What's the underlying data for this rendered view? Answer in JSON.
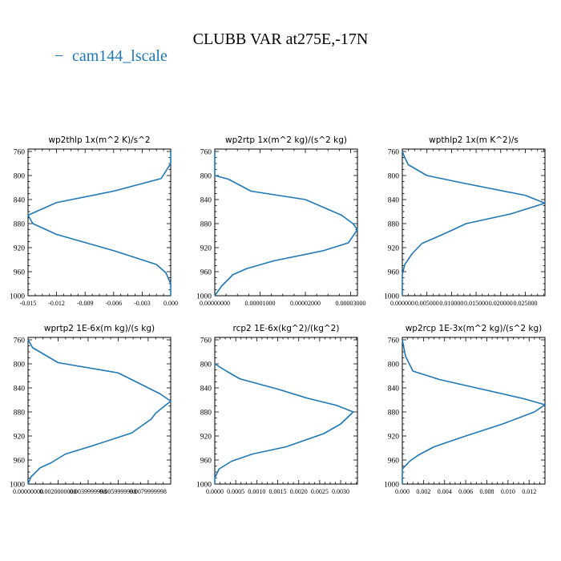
{
  "figure": {
    "title": "CLUBB VAR at275E,-17N",
    "legend_label": "cam144_lscale",
    "legend_marker": "−",
    "series_color": "#1f77b4"
  },
  "chart_data": [
    {
      "type": "line",
      "title": "wp2thlp  1x(m^2 K)/s^2",
      "series": [
        {
          "name": "cam144_lscale",
          "points": [
            [
              0.0,
              760
            ],
            [
              0.0,
              780
            ],
            [
              -0.001,
              805
            ],
            [
              -0.006,
              826
            ],
            [
              -0.012,
              845
            ],
            [
              -0.015,
              866
            ],
            [
              -0.0145,
              880
            ],
            [
              -0.012,
              898
            ],
            [
              -0.006,
              925
            ],
            [
              -0.0015,
              948
            ],
            [
              -0.0005,
              962
            ],
            [
              0.0,
              980
            ],
            [
              0.0,
              1000
            ]
          ]
        }
      ],
      "ylim": [
        1000,
        756
      ],
      "yticks": [
        "760",
        "800",
        "840",
        "880",
        "920",
        "960",
        "1000"
      ],
      "xlim": [
        -0.015,
        0.0
      ],
      "xticks": [
        "-0.015",
        "-0.012",
        "-0.009",
        "-0.006",
        "-0.003",
        "0.000"
      ]
    },
    {
      "type": "line",
      "title": "wp2rtp  1x(m^2 kg)/(s^2 kg)",
      "series": [
        {
          "name": "cam144_lscale",
          "points": [
            [
              0.0,
              760
            ],
            [
              0.0,
              800
            ],
            [
              3e-06,
              806
            ],
            [
              8e-06,
              826
            ],
            [
              2e-05,
              840
            ],
            [
              2.8e-05,
              866
            ],
            [
              3.05e-05,
              880
            ],
            [
              3.15e-05,
              890
            ],
            [
              2.95e-05,
              912
            ],
            [
              2.4e-05,
              925
            ],
            [
              1.3e-05,
              942
            ],
            [
              7e-06,
              955
            ],
            [
              4e-06,
              965
            ],
            [
              1.5e-06,
              984
            ],
            [
              0.0,
              1000
            ]
          ]
        }
      ],
      "ylim": [
        1000,
        756
      ],
      "yticks": [
        "760",
        "800",
        "840",
        "880",
        "920",
        "960",
        "1000"
      ],
      "xlim": [
        0.0,
        3.15e-05
      ],
      "xticks": [
        "0.00000000",
        "0.00001000",
        "0.00002000",
        "0.00003000"
      ]
    },
    {
      "type": "line",
      "title": "wpthlp2  1x(m K^2)/s",
      "series": [
        {
          "name": "cam144_lscale",
          "points": [
            [
              0.0,
              760
            ],
            [
              0.0005,
              770
            ],
            [
              0.0012,
              782
            ],
            [
              0.005,
              800
            ],
            [
              0.012,
              812
            ],
            [
              0.025,
              833
            ],
            [
              0.029,
              846
            ],
            [
              0.022,
              864
            ],
            [
              0.013,
              880
            ],
            [
              0.0085,
              897
            ],
            [
              0.004,
              913
            ],
            [
              0.002,
              930
            ],
            [
              0.0005,
              948
            ],
            [
              0.0,
              965
            ],
            [
              0.0,
              1000
            ]
          ]
        }
      ],
      "ylim": [
        1000,
        756
      ],
      "yticks": [
        "760",
        "800",
        "840",
        "880",
        "920",
        "960",
        "1000"
      ],
      "xlim": [
        0.0,
        0.029
      ],
      "xticks": [
        "0.000000",
        "0.005000",
        "0.010000",
        "0.015000",
        "0.020000",
        "0.025000"
      ]
    },
    {
      "type": "line",
      "title": "wprtp2  1E-6x(m kg)/(s kg)",
      "series": [
        {
          "name": "cam144_lscale",
          "points": [
            [
              0.0,
              760
            ],
            [
              0.0003,
              773
            ],
            [
              0.002,
              798
            ],
            [
              0.006,
              815
            ],
            [
              0.0088,
              850
            ],
            [
              0.0095,
              862
            ],
            [
              0.0085,
              882
            ],
            [
              0.0082,
              892
            ],
            [
              0.0069,
              915
            ],
            [
              0.0042,
              937
            ],
            [
              0.0025,
              950
            ],
            [
              0.0015,
              965
            ],
            [
              0.0008,
              973
            ],
            [
              0.0002,
              988
            ],
            [
              0.0,
              1000
            ]
          ]
        }
      ],
      "ylim": [
        1000,
        756
      ],
      "yticks": [
        "760",
        "800",
        "840",
        "880",
        "920",
        "960",
        "1000"
      ],
      "xlim": [
        0.0,
        0.0095
      ],
      "xticks": [
        "0.00000000",
        "0.0020000000",
        "0.0039999998",
        "0.0059999998",
        "0.0079999998"
      ]
    },
    {
      "type": "line",
      "title": "rcp2  1E-6x(kg^2)/(kg^2)",
      "series": [
        {
          "name": "cam144_lscale",
          "points": [
            [
              0.0,
              800
            ],
            [
              0.0003,
              813
            ],
            [
              0.0006,
              825
            ],
            [
              0.0015,
              842
            ],
            [
              0.0022,
              857
            ],
            [
              0.0029,
              869
            ],
            [
              0.0033,
              880
            ],
            [
              0.003,
              900
            ],
            [
              0.0026,
              916
            ],
            [
              0.0017,
              938
            ],
            [
              0.0009,
              950
            ],
            [
              0.0004,
              962
            ],
            [
              0.0001,
              975
            ],
            [
              0.0,
              990
            ],
            [
              0.0,
              1000
            ]
          ]
        }
      ],
      "ylim": [
        1000,
        756
      ],
      "yticks": [
        "760",
        "800",
        "840",
        "880",
        "920",
        "960",
        "1000"
      ],
      "xlim": [
        0.0,
        0.0034
      ],
      "xticks": [
        "0.0000",
        "0.0005",
        "0.0010",
        "0.0015",
        "0.0020",
        "0.0025",
        "0.0030"
      ]
    },
    {
      "type": "line",
      "title": "wp2rcp  1E-3x(m^2 kg)/(s^2 kg)",
      "series": [
        {
          "name": "cam144_lscale",
          "points": [
            [
              0.0,
              760
            ],
            [
              0.0003,
              787
            ],
            [
              0.001,
              812
            ],
            [
              0.0035,
              826
            ],
            [
              0.007,
              840
            ],
            [
              0.0115,
              858
            ],
            [
              0.0135,
              868
            ],
            [
              0.0125,
              880
            ],
            [
              0.0095,
              900
            ],
            [
              0.006,
              920
            ],
            [
              0.003,
              938
            ],
            [
              0.0015,
              952
            ],
            [
              0.0007,
              962
            ],
            [
              0.0,
              975
            ],
            [
              0.0,
              1000
            ]
          ]
        }
      ],
      "ylim": [
        1000,
        756
      ],
      "yticks": [
        "760",
        "800",
        "840",
        "880",
        "920",
        "960",
        "1000"
      ],
      "xlim": [
        0.0,
        0.0135
      ],
      "xticks": [
        "0.000",
        "0.002",
        "0.004",
        "0.006",
        "0.008",
        "0.010",
        "0.012"
      ]
    }
  ]
}
